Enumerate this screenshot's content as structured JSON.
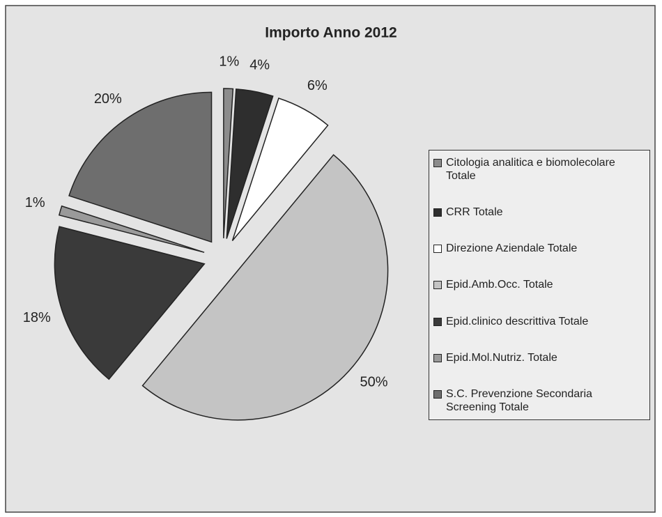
{
  "chart_data": {
    "type": "pie",
    "title": "Importo Anno 2012",
    "categories": [
      "Citologia analitica e biomolecolare Totale",
      "CRR Totale",
      "Direzione Aziendale Totale",
      "Epid.Amb.Occ. Totale",
      "Epid.clinico descrittiva Totale",
      "Epid.Mol.Nutriz. Totale",
      "S.C. Prevenzione Secondaria Screening Totale"
    ],
    "values": [
      1,
      4,
      6,
      50,
      18,
      1,
      20
    ],
    "value_labels": [
      "1%",
      "4%",
      "6%",
      "50%",
      "18%",
      "1%",
      "20%"
    ],
    "colors": [
      "#8c8c8c",
      "#2e2e2e",
      "#ffffff",
      "#c4c4c4",
      "#3a3a3a",
      "#9a9a9a",
      "#6e6e6e"
    ]
  }
}
